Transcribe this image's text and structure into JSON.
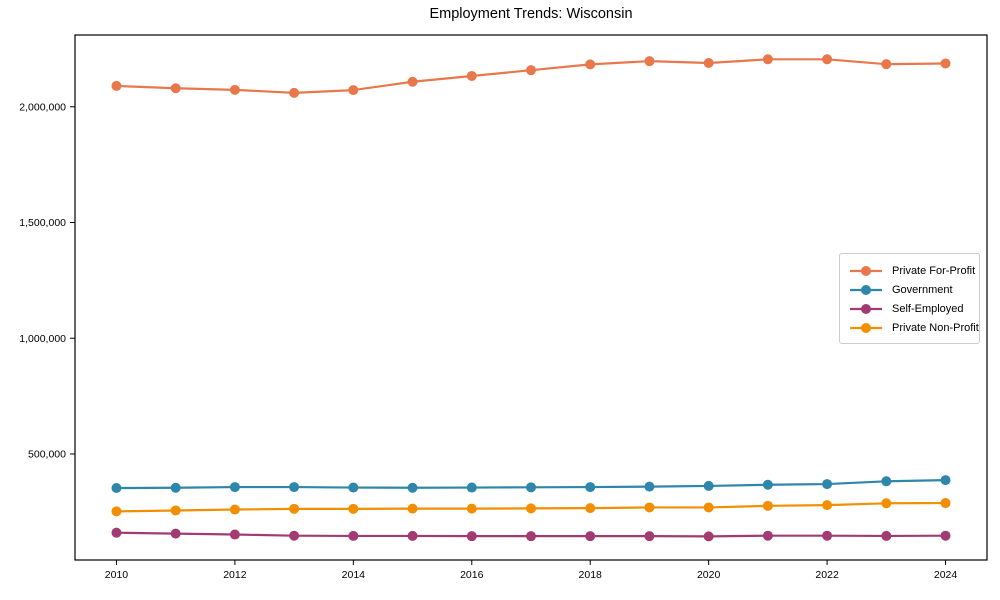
{
  "figure": {
    "background_color": "#ffffff",
    "text_color": "#000000",
    "spine_color": "#000000"
  },
  "chart_data": {
    "type": "line",
    "title": "Employment Trends: Wisconsin",
    "xlabel": "",
    "ylabel": "",
    "grid": false,
    "legend_position": "center-right",
    "xlim": [
      2009.3,
      2024.7
    ],
    "ylim": [
      42000,
      2310000
    ],
    "x": [
      2010,
      2011,
      2012,
      2013,
      2014,
      2015,
      2016,
      2017,
      2018,
      2019,
      2020,
      2021,
      2022,
      2023,
      2024
    ],
    "x_ticks": [
      2010,
      2012,
      2014,
      2016,
      2018,
      2020,
      2022,
      2024
    ],
    "x_tick_labels": [
      "2010",
      "2012",
      "2014",
      "2016",
      "2018",
      "2020",
      "2022",
      "2024"
    ],
    "y_ticks": [
      500000,
      1000000,
      1500000,
      2000000
    ],
    "y_tick_labels": [
      "500,000",
      "1,000,000",
      "1,500,000",
      "2,000,000"
    ],
    "series": [
      {
        "name": "Private For-Profit",
        "color": "#E8784B",
        "marker": "circle",
        "values": [
          2090000,
          2080000,
          2073000,
          2060000,
          2072000,
          2108000,
          2133000,
          2158000,
          2183000,
          2197000,
          2189000,
          2205000,
          2205000,
          2184000,
          2187000
        ]
      },
      {
        "name": "Government",
        "color": "#2E86AB",
        "marker": "circle",
        "values": [
          353000,
          354000,
          357000,
          357000,
          355000,
          354000,
          355000,
          356000,
          357000,
          359000,
          362000,
          367000,
          370000,
          382000,
          387000
        ]
      },
      {
        "name": "Self-Employed",
        "color": "#A23B72",
        "marker": "circle",
        "values": [
          160000,
          156000,
          152000,
          147000,
          146000,
          146000,
          145000,
          145000,
          145000,
          145000,
          144000,
          147000,
          147000,
          146000,
          147000
        ]
      },
      {
        "name": "Private Non-Profit",
        "color": "#F18F01",
        "marker": "circle",
        "values": [
          252000,
          256000,
          260000,
          263000,
          263000,
          264000,
          264000,
          265000,
          266000,
          269000,
          269000,
          276000,
          279000,
          287000,
          288000
        ]
      }
    ]
  }
}
